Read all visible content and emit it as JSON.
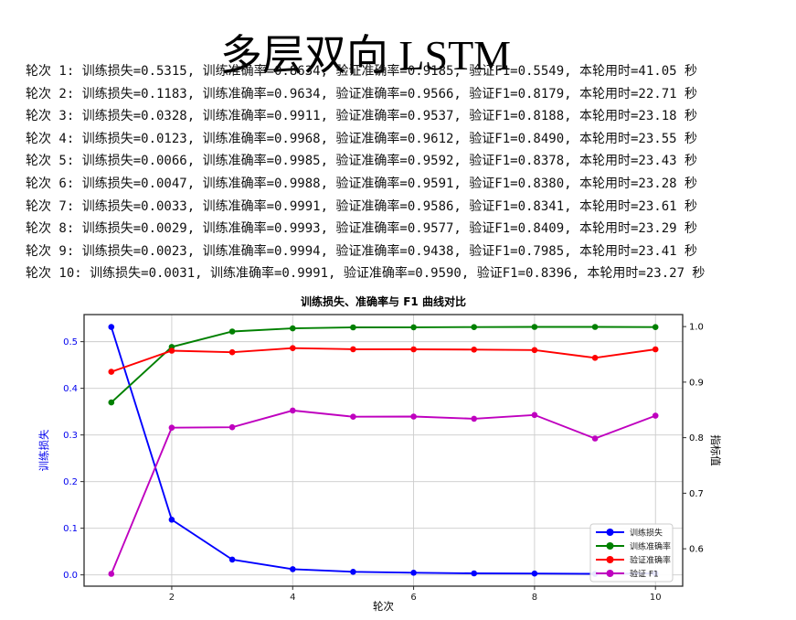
{
  "title": "多层双向 LSTM",
  "training_log": {
    "lines": [
      "轮次 1: 训练损失=0.5315, 训练准确率=0.8634, 验证准确率=0.9185, 验证F1=0.5549, 本轮用时=41.05 秒",
      "轮次 2: 训练损失=0.1183, 训练准确率=0.9634, 验证准确率=0.9566, 验证F1=0.8179, 本轮用时=22.71 秒",
      "轮次 3: 训练损失=0.0328, 训练准确率=0.9911, 验证准确率=0.9537, 验证F1=0.8188, 本轮用时=23.18 秒",
      "轮次 4: 训练损失=0.0123, 训练准确率=0.9968, 验证准确率=0.9612, 验证F1=0.8490, 本轮用时=23.55 秒",
      "轮次 5: 训练损失=0.0066, 训练准确率=0.9985, 验证准确率=0.9592, 验证F1=0.8378, 本轮用时=23.43 秒",
      "轮次 6: 训练损失=0.0047, 训练准确率=0.9988, 验证准确率=0.9591, 验证F1=0.8380, 本轮用时=23.28 秒",
      "轮次 7: 训练损失=0.0033, 训练准确率=0.9991, 验证准确率=0.9586, 验证F1=0.8341, 本轮用时=23.61 秒",
      "轮次 8: 训练损失=0.0029, 训练准确率=0.9993, 验证准确率=0.9577, 验证F1=0.8409, 本轮用时=23.29 秒",
      "轮次 9: 训练损失=0.0023, 训练准确率=0.9994, 验证准确率=0.9438, 验证F1=0.7985, 本轮用时=23.41 秒",
      "轮次 10: 训练损失=0.0031, 训练准确率=0.9991, 验证准确率=0.9590, 验证F1=0.8396, 本轮用时=23.27 秒"
    ]
  },
  "chart_data": {
    "type": "line",
    "title": "训练损失、准确率与 F1 曲线对比",
    "xlabel": "轮次",
    "ylabel_left": "训练损失",
    "ylabel_right": "指标值",
    "x": [
      1,
      2,
      3,
      4,
      5,
      6,
      7,
      8,
      9,
      10
    ],
    "xlim": [
      0.55,
      10.45
    ],
    "x_ticks": [
      2,
      4,
      6,
      8,
      10
    ],
    "left_axis": {
      "ticks": [
        0.0,
        0.1,
        0.2,
        0.3,
        0.4,
        0.5
      ],
      "lim": [
        -0.0242,
        0.5581
      ],
      "color": "#0000ee"
    },
    "right_axis": {
      "ticks": [
        0.6,
        0.7,
        0.8,
        0.9,
        1.0
      ],
      "lim": [
        0.5327,
        1.0216
      ],
      "color": "#000000"
    },
    "grid": true,
    "grid_color": "#cccccc",
    "legend_position": "lower right",
    "series": [
      {
        "key": "train-loss",
        "name": "训练损失",
        "axis": "left",
        "color": "#0000ff",
        "values": [
          0.5315,
          0.1183,
          0.0328,
          0.0123,
          0.0066,
          0.0047,
          0.0033,
          0.0029,
          0.0023,
          0.0031
        ]
      },
      {
        "key": "train-accuracy",
        "name": "训练准确率",
        "axis": "right",
        "color": "#008000",
        "values": [
          0.8634,
          0.9634,
          0.9911,
          0.9968,
          0.9985,
          0.9988,
          0.9991,
          0.9993,
          0.9994,
          0.9991
        ]
      },
      {
        "key": "val-accuracy",
        "name": "验证准确率",
        "axis": "right",
        "color": "#ff0000",
        "values": [
          0.9185,
          0.9566,
          0.9537,
          0.9612,
          0.9592,
          0.9591,
          0.9586,
          0.9577,
          0.9438,
          0.959
        ]
      },
      {
        "key": "val-f1",
        "name": "验证 F1",
        "axis": "right",
        "color": "#bf00bf",
        "values": [
          0.5549,
          0.8179,
          0.8188,
          0.849,
          0.8378,
          0.838,
          0.8341,
          0.8409,
          0.7985,
          0.8396
        ]
      }
    ]
  }
}
